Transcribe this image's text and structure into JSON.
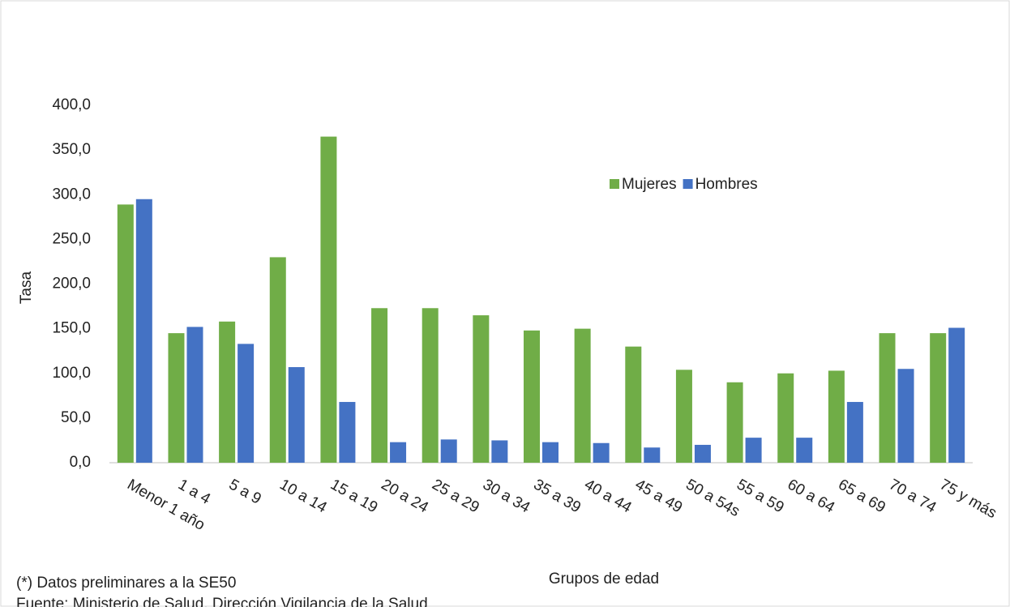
{
  "chart_data": {
    "type": "bar",
    "y_label": "Tasa",
    "x_label": "Grupos de edad",
    "notes": [
      "(*) Datos preliminares a la SE50",
      "Fuente: Ministerio de Salud, Dirección Vigilancia de la Salud"
    ],
    "categories": [
      "Menor 1 año",
      "1 a 4",
      "5 a 9",
      "10 a 14",
      "15 a 19",
      "20 a 24",
      "25 a 29",
      "30 a 34",
      "35 a 39",
      "40 a 44",
      "45 a 49",
      "50 a 54s",
      "55 a 59",
      "60 a 64",
      "65 a 69",
      "70 a 74",
      "75 y más"
    ],
    "series": [
      {
        "name": "Mujeres",
        "color": "#70ad47",
        "values": [
          289,
          145,
          158,
          230,
          365,
          173,
          173,
          165,
          148,
          150,
          130,
          104,
          90,
          100,
          103,
          145,
          145
        ]
      },
      {
        "name": "Hombres",
        "color": "#4472c4",
        "values": [
          295,
          152,
          133,
          107,
          68,
          23,
          26,
          25,
          23,
          22,
          17,
          20,
          28,
          28,
          68,
          105,
          151
        ]
      }
    ],
    "ylim": [
      0,
      400
    ],
    "yticks": [
      {
        "value": 0,
        "label": "0,0"
      },
      {
        "value": 50,
        "label": "50,0"
      },
      {
        "value": 100,
        "label": "100,0"
      },
      {
        "value": 150,
        "label": "150,0"
      },
      {
        "value": 200,
        "label": "200,0"
      },
      {
        "value": 250,
        "label": "250,0"
      },
      {
        "value": 300,
        "label": "300,0"
      },
      {
        "value": 350,
        "label": "350,0"
      },
      {
        "value": 400,
        "label": "400,0"
      }
    ],
    "grid": false,
    "legend": "top-right"
  }
}
